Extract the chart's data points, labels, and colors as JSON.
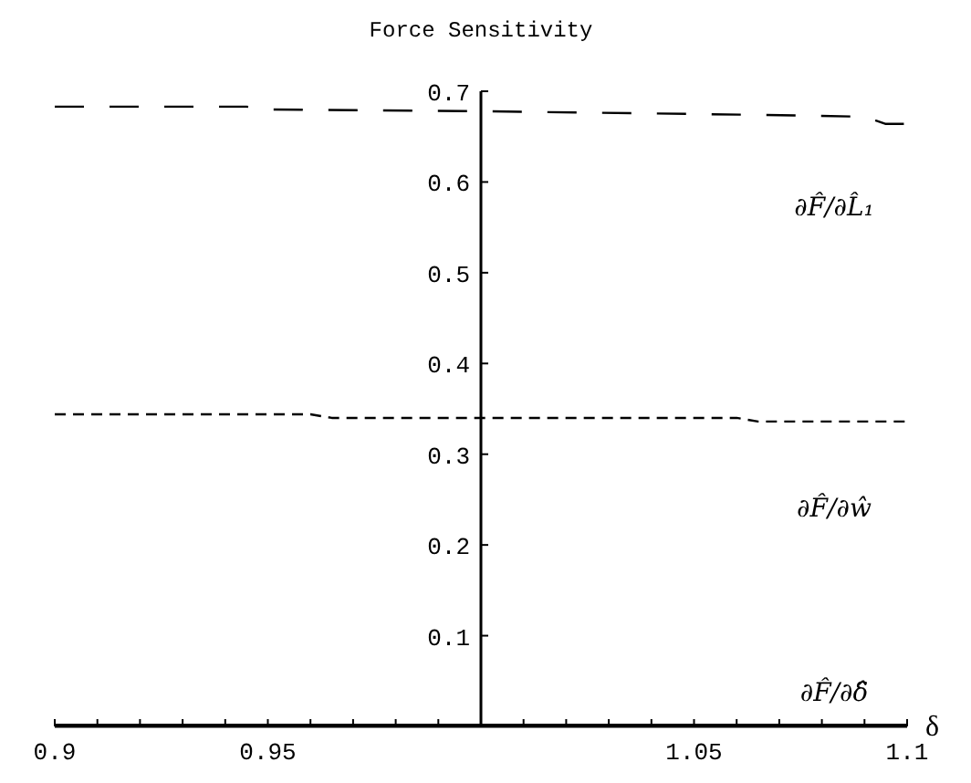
{
  "chart_data": {
    "type": "line",
    "title": "Force Sensitivity",
    "xlabel": "δ",
    "xlim": [
      0.9,
      1.1
    ],
    "ylim": [
      0,
      0.7
    ],
    "xticks": [
      0.9,
      {
        "value": 0.91,
        "label": null
      },
      {
        "value": 0.92,
        "label": null
      },
      {
        "value": 0.93,
        "label": null
      },
      {
        "value": 0.94,
        "label": null
      },
      0.95,
      {
        "value": 0.96,
        "label": null
      },
      {
        "value": 0.97,
        "label": null
      },
      {
        "value": 0.98,
        "label": null
      },
      {
        "value": 0.99,
        "label": null
      },
      {
        "value": 1,
        "label": null
      },
      {
        "value": 1.01,
        "label": null
      },
      {
        "value": 1.02,
        "label": null
      },
      {
        "value": 1.03,
        "label": null
      },
      {
        "value": 1.04,
        "label": null
      },
      1.05,
      {
        "value": 1.06,
        "label": null
      },
      {
        "value": 1.07,
        "label": null
      },
      {
        "value": 1.08,
        "label": null
      },
      {
        "value": 1.09,
        "label": null
      },
      1.1
    ],
    "yticks": [
      0.1,
      0.2,
      0.3,
      0.4,
      0.5,
      0.6,
      0.7
    ],
    "ref_lines": [
      {
        "axis": "x",
        "value": 1,
        "color": "#000000"
      }
    ],
    "grid": false,
    "legend": false,
    "marker": "none",
    "series": [
      {
        "name": "∂F̂/∂L̂₁",
        "color": "#000000",
        "line_style": "dashed",
        "x": [
          0.9,
          0.945,
          0.95,
          1.0,
          1.065,
          1.09,
          1.095,
          1.1
        ],
        "values": [
          0.683,
          0.683,
          0.68,
          0.678,
          0.674,
          0.672,
          0.664,
          0.664
        ]
      },
      {
        "name": "∂F̂/∂ŵ",
        "color": "#000000",
        "line_style": "dotted",
        "x": [
          0.9,
          0.96,
          0.965,
          1.06,
          1.065,
          1.1
        ],
        "values": [
          0.344,
          0.344,
          0.34,
          0.34,
          0.336,
          0.336
        ]
      },
      {
        "name": "∂F̂/∂δ̂",
        "color": "#000000",
        "line_style": "solid",
        "x": [
          0.9,
          1.1
        ],
        "values": [
          0,
          0
        ]
      }
    ]
  }
}
